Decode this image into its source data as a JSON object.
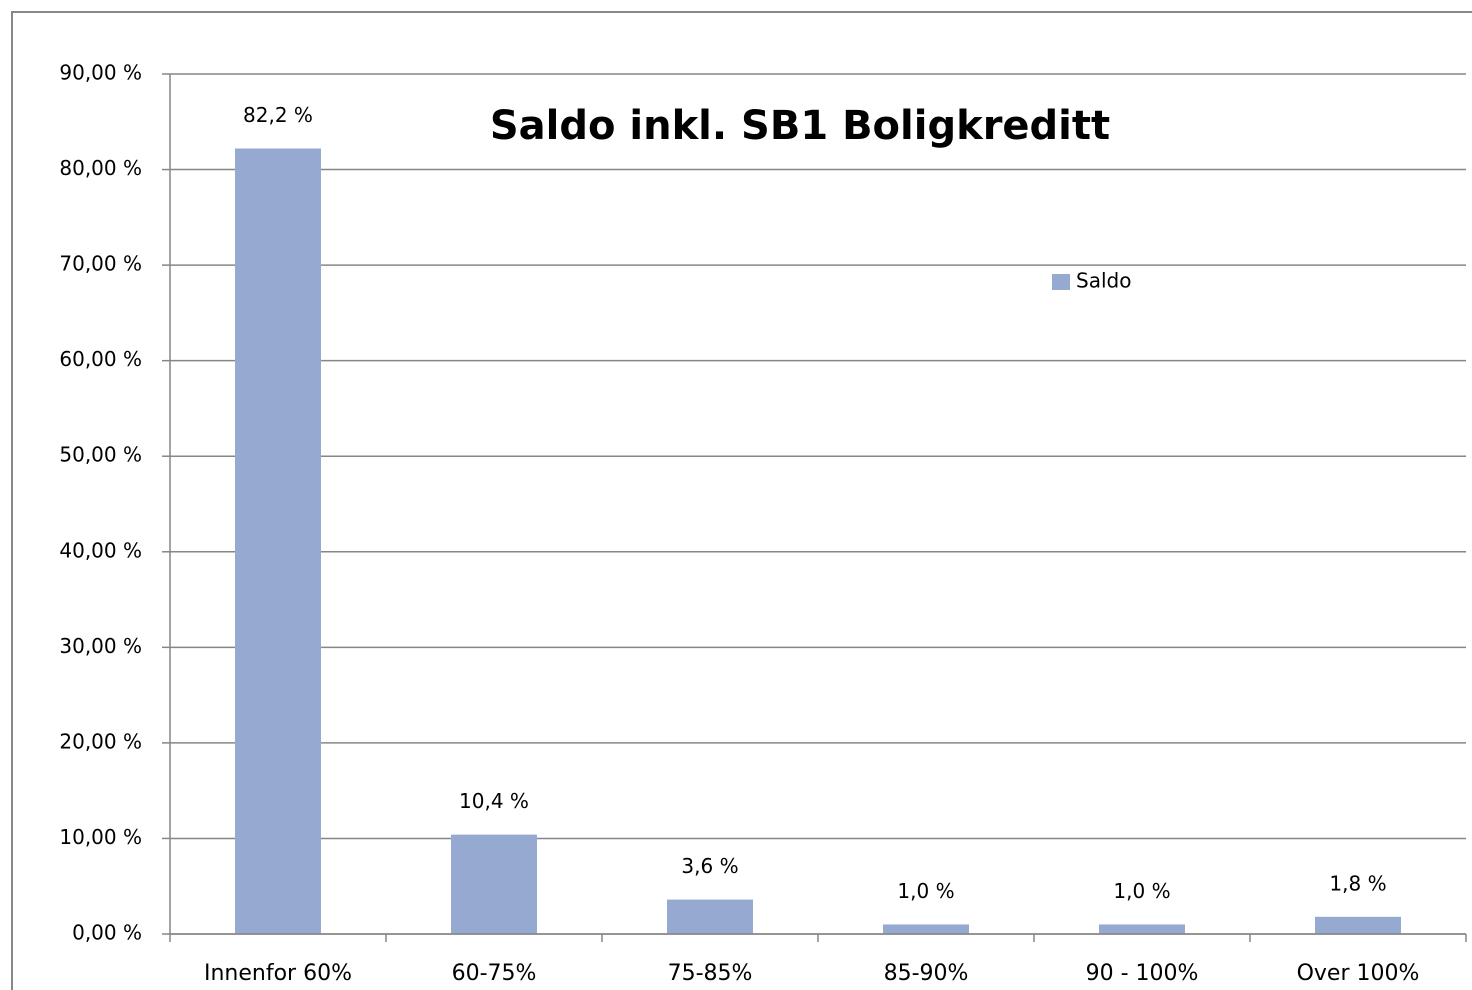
{
  "chart_data": {
    "type": "bar",
    "title": "Saldo inkl. SB1 Boligkreditt",
    "categories": [
      "Innenfor 60%",
      "60-75%",
      "75-85%",
      "85-90%",
      "90 - 100%",
      "Over 100%"
    ],
    "series": [
      {
        "name": "Saldo",
        "color": "#95a9d1",
        "values": [
          82.2,
          10.4,
          3.6,
          1.0,
          1.0,
          1.8
        ],
        "value_labels": [
          "82,2 %",
          "10,4 %",
          "3,6 %",
          "1,0 %",
          "1,0 %",
          "1,8 %"
        ]
      }
    ],
    "ylim": [
      0,
      90
    ],
    "yticks": [
      {
        "value": 0,
        "label": "0,00 %"
      },
      {
        "value": 10,
        "label": "10,00 %"
      },
      {
        "value": 20,
        "label": "20,00 %"
      },
      {
        "value": 30,
        "label": "30,00 %"
      },
      {
        "value": 40,
        "label": "40,00 %"
      },
      {
        "value": 50,
        "label": "50,00 %"
      },
      {
        "value": 60,
        "label": "60,00 %"
      },
      {
        "value": 70,
        "label": "70,00 %"
      },
      {
        "value": 80,
        "label": "80,00 %"
      },
      {
        "value": 90,
        "label": "90,00 %"
      }
    ],
    "grid": true
  }
}
